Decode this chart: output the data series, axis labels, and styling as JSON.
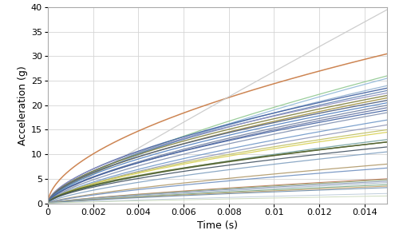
{
  "title": "",
  "xlabel": "Time (s)",
  "ylabel": "Acceleration (g)",
  "xlim": [
    0,
    0.015
  ],
  "ylim": [
    0,
    40
  ],
  "xticks": [
    0,
    0.002,
    0.004,
    0.006,
    0.008,
    0.01,
    0.012,
    0.014
  ],
  "yticks": [
    0,
    5,
    10,
    15,
    20,
    25,
    30,
    35,
    40
  ],
  "background_color": "#ffffff",
  "grid_color": "#d5d5d5",
  "curves": [
    {
      "a_max": 30.5,
      "power": 0.55,
      "color": "#c87840",
      "lw": 1.1
    },
    {
      "a_max": 39.5,
      "power": 0.95,
      "color": "#c8c8c8",
      "lw": 0.9
    },
    {
      "a_max": 26.0,
      "power": 0.7,
      "color": "#90c890",
      "lw": 0.9
    },
    {
      "a_max": 25.5,
      "power": 0.72,
      "color": "#90b8d8",
      "lw": 0.9
    },
    {
      "a_max": 24.0,
      "power": 0.65,
      "color": "#90b0d0",
      "lw": 0.9
    },
    {
      "a_max": 23.5,
      "power": 0.6,
      "color": "#4060a0",
      "lw": 1.0
    },
    {
      "a_max": 23.0,
      "power": 0.62,
      "color": "#6080b0",
      "lw": 0.9
    },
    {
      "a_max": 22.5,
      "power": 0.58,
      "color": "#9090c0",
      "lw": 0.9
    },
    {
      "a_max": 22.0,
      "power": 0.6,
      "color": "#808040",
      "lw": 1.0
    },
    {
      "a_max": 21.5,
      "power": 0.62,
      "color": "#a09040",
      "lw": 1.0
    },
    {
      "a_max": 21.0,
      "power": 0.6,
      "color": "#506080",
      "lw": 1.0
    },
    {
      "a_max": 20.5,
      "power": 0.62,
      "color": "#5080c0",
      "lw": 0.9
    },
    {
      "a_max": 20.0,
      "power": 0.65,
      "color": "#7080a0",
      "lw": 0.9
    },
    {
      "a_max": 19.5,
      "power": 0.65,
      "color": "#6070a0",
      "lw": 0.9
    },
    {
      "a_max": 19.0,
      "power": 0.63,
      "color": "#4060a0",
      "lw": 0.9
    },
    {
      "a_max": 18.5,
      "power": 0.67,
      "color": "#8090b0",
      "lw": 0.9
    },
    {
      "a_max": 17.0,
      "power": 0.68,
      "color": "#7098c8",
      "lw": 0.9
    },
    {
      "a_max": 16.0,
      "power": 0.68,
      "color": "#9098b8",
      "lw": 0.9
    },
    {
      "a_max": 15.0,
      "power": 0.65,
      "color": "#c0c060",
      "lw": 0.9
    },
    {
      "a_max": 14.5,
      "power": 0.65,
      "color": "#d8d050",
      "lw": 0.9
    },
    {
      "a_max": 13.0,
      "power": 0.65,
      "color": "#70a0a0",
      "lw": 0.9
    },
    {
      "a_max": 12.5,
      "power": 0.6,
      "color": "#607030",
      "lw": 1.0
    },
    {
      "a_max": 12.5,
      "power": 0.62,
      "color": "#506030",
      "lw": 1.0
    },
    {
      "a_max": 11.5,
      "power": 0.62,
      "color": "#405060",
      "lw": 0.9
    },
    {
      "a_max": 10.5,
      "power": 0.68,
      "color": "#80a0c0",
      "lw": 0.9
    },
    {
      "a_max": 8.0,
      "power": 0.72,
      "color": "#b09868",
      "lw": 0.9
    },
    {
      "a_max": 7.2,
      "power": 0.72,
      "color": "#7090c0",
      "lw": 0.9
    },
    {
      "a_max": 5.0,
      "power": 0.75,
      "color": "#c07858",
      "lw": 0.8
    },
    {
      "a_max": 4.8,
      "power": 0.75,
      "color": "#90a878",
      "lw": 0.8
    },
    {
      "a_max": 4.5,
      "power": 0.75,
      "color": "#8898b8",
      "lw": 0.8
    },
    {
      "a_max": 4.2,
      "power": 0.78,
      "color": "#a8b8c8",
      "lw": 0.8
    },
    {
      "a_max": 3.8,
      "power": 0.78,
      "color": "#78a888",
      "lw": 0.8
    },
    {
      "a_max": 3.5,
      "power": 0.78,
      "color": "#c0a068",
      "lw": 0.8
    },
    {
      "a_max": 3.2,
      "power": 0.78,
      "color": "#6888a8",
      "lw": 0.8
    },
    {
      "a_max": 2.0,
      "power": 0.82,
      "color": "#b8c8d8",
      "lw": 0.7
    },
    {
      "a_max": 1.5,
      "power": 0.82,
      "color": "#c8d8b8",
      "lw": 0.7
    }
  ]
}
